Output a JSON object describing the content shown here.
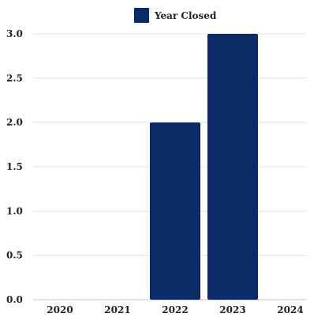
{
  "chart_data": {
    "type": "bar",
    "categories": [
      "2020",
      "2021",
      "2022",
      "2023",
      "2024"
    ],
    "series": [
      {
        "name": "Year Closed",
        "values": [
          0,
          0,
          2,
          3,
          0
        ],
        "color": "#0b2a66"
      }
    ],
    "yticks": [
      "0.0",
      "0.5",
      "1.0",
      "1.5",
      "2.0",
      "2.5",
      "3.0"
    ],
    "ylim": [
      0,
      3
    ],
    "grid": true,
    "legend": "top-center"
  }
}
